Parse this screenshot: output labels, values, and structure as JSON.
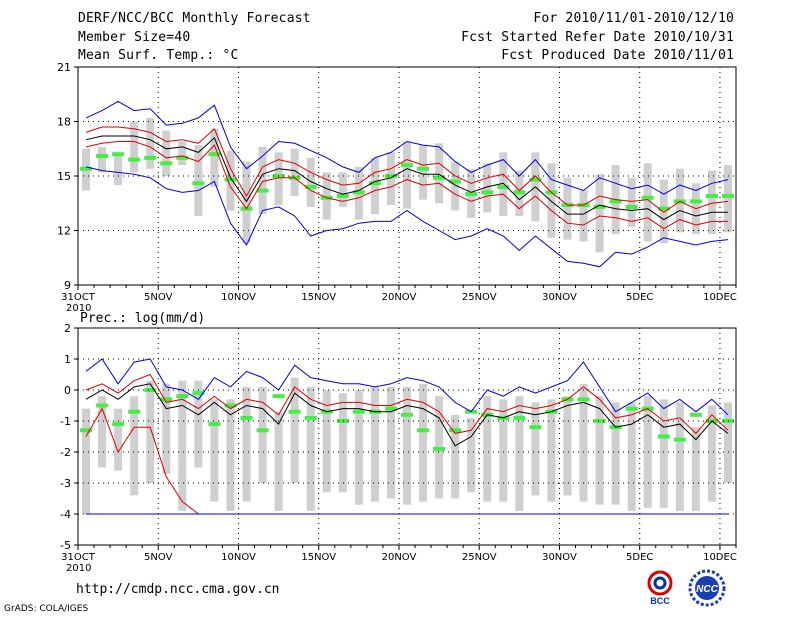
{
  "header": {
    "title": "DERF/NCC/BCC Monthly Forecast",
    "member": "Member Size=40",
    "variable": "Mean Surf. Temp.: °C",
    "for_period": "For 2010/11/01-2010/12/10",
    "fcst_started": "Fcst Started Refer Date 2010/10/31",
    "fcst_produced": "Fcst Produced Date 2010/11/01"
  },
  "footer": {
    "url": "http://cmdp.ncc.cma.gov.cn",
    "grads": "GrADS: COLA/IGES",
    "logo_bcc": "BCC",
    "logo_ncc": "NCC"
  },
  "colors": {
    "envelope": "#0000dd",
    "spread": "#dd0000",
    "mean": "#000000",
    "box": "#cfcfcf",
    "median": "#44ee44"
  },
  "chart_data": [
    {
      "type": "line",
      "title": "Mean Surf. Temp.: °C",
      "x_ticks": [
        {
          "i": 0,
          "label": "31OCT",
          "sub": "2010"
        },
        {
          "i": 5,
          "label": "5NOV"
        },
        {
          "i": 10,
          "label": "10NOV"
        },
        {
          "i": 15,
          "label": "15NOV"
        },
        {
          "i": 20,
          "label": "20NOV"
        },
        {
          "i": 25,
          "label": "25NOV"
        },
        {
          "i": 30,
          "label": "30NOV"
        },
        {
          "i": 35,
          "label": "5DEC"
        },
        {
          "i": 40,
          "label": "10DEC"
        }
      ],
      "ylim": [
        9,
        21
      ],
      "yticks": [
        9,
        12,
        15,
        18,
        21
      ],
      "n_days": 41,
      "first_day": 1,
      "series": [
        {
          "name": "max",
          "values": [
            18.2,
            18.6,
            19.1,
            18.6,
            18.7,
            17.8,
            17.9,
            18.2,
            18.9,
            16.6,
            15.4,
            16.1,
            16.9,
            16.8,
            16.4,
            16.0,
            15.5,
            15.2,
            16.0,
            16.3,
            16.9,
            16.7,
            16.6,
            15.8,
            15.2,
            15.6,
            15.9,
            15.0,
            15.9,
            14.8,
            14.5,
            14.2,
            14.9,
            14.6,
            14.3,
            14.5,
            14.0,
            14.5,
            14.2,
            14.6,
            14.8
          ]
        },
        {
          "name": "upper",
          "values": [
            17.4,
            17.7,
            17.7,
            17.6,
            17.4,
            16.9,
            17.0,
            16.8,
            17.6,
            15.4,
            13.9,
            15.5,
            15.9,
            15.7,
            15.2,
            14.8,
            14.5,
            14.6,
            15.2,
            15.4,
            15.9,
            15.6,
            15.7,
            15.0,
            14.6,
            14.9,
            15.1,
            14.2,
            15.0,
            14.1,
            13.4,
            13.4,
            13.9,
            13.7,
            13.6,
            13.7,
            13.0,
            13.6,
            13.2,
            13.5,
            13.6
          ]
        },
        {
          "name": "mean",
          "values": [
            17.0,
            17.2,
            17.2,
            17.2,
            17.0,
            16.5,
            16.6,
            16.3,
            17.1,
            14.9,
            13.6,
            15.1,
            15.4,
            15.3,
            14.7,
            14.3,
            14.0,
            14.2,
            14.7,
            14.9,
            15.4,
            15.1,
            15.1,
            14.5,
            14.1,
            14.4,
            14.6,
            13.7,
            14.4,
            13.6,
            12.9,
            12.9,
            13.4,
            13.2,
            13.1,
            13.2,
            12.6,
            13.1,
            12.8,
            13.0,
            13.0
          ]
        },
        {
          "name": "lower",
          "values": [
            16.6,
            16.8,
            16.9,
            16.9,
            16.6,
            16.0,
            16.1,
            15.8,
            16.7,
            14.4,
            13.2,
            14.7,
            14.9,
            14.9,
            14.2,
            13.8,
            13.6,
            13.8,
            14.2,
            14.4,
            14.8,
            14.5,
            14.6,
            14.0,
            13.6,
            13.9,
            14.0,
            13.2,
            13.9,
            13.1,
            12.4,
            12.3,
            12.8,
            12.7,
            12.5,
            12.7,
            12.1,
            12.6,
            12.3,
            12.5,
            12.5
          ]
        },
        {
          "name": "min",
          "values": [
            15.5,
            15.3,
            15.2,
            15.1,
            14.9,
            14.3,
            14.1,
            14.2,
            14.7,
            12.4,
            11.2,
            13.1,
            13.3,
            12.8,
            11.7,
            12.0,
            12.1,
            12.4,
            12.5,
            12.5,
            13.1,
            12.5,
            12.0,
            11.5,
            11.7,
            12.1,
            11.7,
            10.9,
            11.7,
            11.0,
            10.3,
            10.2,
            10.0,
            10.8,
            10.7,
            11.1,
            11.6,
            11.4,
            11.2,
            11.4,
            11.5
          ]
        }
      ],
      "boxes": {
        "top": [
          16.5,
          16.6,
          16.2,
          18.0,
          18.2,
          17.5,
          16.9,
          16.7,
          17.6,
          16.4,
          15.8,
          16.6,
          16.3,
          16.5,
          16.0,
          15.2,
          15.2,
          15.5,
          16.0,
          16.3,
          16.9,
          16.7,
          16.8,
          15.8,
          15.4,
          15.7,
          16.3,
          15.3,
          16.3,
          15.7,
          14.9,
          14.2,
          15.1,
          15.6,
          14.9,
          15.7,
          14.8,
          15.4,
          14.6,
          15.3,
          15.6
        ],
        "bottom": [
          14.2,
          15.2,
          14.5,
          15.2,
          15.4,
          15.0,
          15.6,
          12.8,
          14.4,
          13.1,
          11.3,
          12.9,
          13.4,
          13.9,
          13.3,
          12.6,
          13.3,
          12.6,
          12.9,
          13.4,
          13.2,
          13.7,
          13.5,
          13.1,
          12.7,
          13.0,
          12.8,
          12.8,
          12.5,
          11.6,
          11.5,
          11.4,
          10.8,
          11.8,
          12.2,
          11.4,
          11.3,
          11.9,
          11.8,
          11.8,
          11.9
        ],
        "mid": [
          15.4,
          16.1,
          16.2,
          15.9,
          16.0,
          15.7,
          16.0,
          14.6,
          16.2,
          14.8,
          13.2,
          14.2,
          15.0,
          14.9,
          14.4,
          13.8,
          13.9,
          14.1,
          14.6,
          15.0,
          15.6,
          15.4,
          14.9,
          14.7,
          14.0,
          14.1,
          14.4,
          14.1,
          14.8,
          14.1,
          13.4,
          13.4,
          13.3,
          13.6,
          13.3,
          13.8,
          13.2,
          13.6,
          13.6,
          13.9,
          13.9
        ]
      }
    },
    {
      "type": "line",
      "title": "Prec.: log(mm/d)",
      "x_ticks": [
        {
          "i": 0,
          "label": "31OCT",
          "sub": "2010"
        },
        {
          "i": 5,
          "label": "5NOV"
        },
        {
          "i": 10,
          "label": "10NOV"
        },
        {
          "i": 15,
          "label": "15NOV"
        },
        {
          "i": 20,
          "label": "20NOV"
        },
        {
          "i": 25,
          "label": "25NOV"
        },
        {
          "i": 30,
          "label": "30NOV"
        },
        {
          "i": 35,
          "label": "5DEC"
        },
        {
          "i": 40,
          "label": "10DEC"
        }
      ],
      "ylim": [
        -5,
        2
      ],
      "yticks": [
        -5,
        -4,
        -3,
        -2,
        -1,
        0,
        1,
        2
      ],
      "n_days": 41,
      "first_day": 1,
      "series": [
        {
          "name": "max",
          "values": [
            0.6,
            1.0,
            0.2,
            0.9,
            1.0,
            0.1,
            0.0,
            -0.3,
            0.4,
            0.1,
            0.6,
            0.4,
            0.0,
            0.8,
            0.4,
            0.3,
            0.2,
            0.2,
            0.1,
            0.2,
            0.4,
            0.3,
            0.1,
            -0.4,
            -0.7,
            0.0,
            -0.2,
            0.1,
            -0.1,
            0.1,
            0.3,
            0.9,
            0.1,
            -0.7,
            -0.4,
            -0.1,
            -0.6,
            -0.3,
            -0.7,
            -0.3,
            -0.8
          ]
        },
        {
          "name": "upper",
          "values": [
            0.0,
            0.2,
            -0.1,
            0.3,
            0.5,
            -0.4,
            -0.3,
            -0.6,
            -0.2,
            -0.6,
            -0.3,
            -0.4,
            -0.8,
            0.1,
            -0.3,
            -0.5,
            -0.4,
            -0.4,
            -0.5,
            -0.5,
            -0.3,
            -0.4,
            -0.7,
            -1.4,
            -1.3,
            -0.6,
            -0.7,
            -0.5,
            -0.6,
            -0.5,
            -0.3,
            0.1,
            -0.3,
            -0.9,
            -0.8,
            -0.6,
            -1.0,
            -0.9,
            -1.4,
            -0.8,
            -1.3
          ]
        },
        {
          "name": "mean",
          "values": [
            -0.3,
            0.0,
            -0.3,
            0.1,
            0.2,
            -0.6,
            -0.5,
            -0.8,
            -0.4,
            -0.8,
            -0.5,
            -0.6,
            -1.1,
            -0.1,
            -0.5,
            -0.7,
            -0.6,
            -0.6,
            -0.7,
            -0.7,
            -0.5,
            -0.6,
            -0.9,
            -1.8,
            -1.5,
            -0.8,
            -0.9,
            -0.7,
            -0.8,
            -0.7,
            -0.5,
            -0.4,
            -0.6,
            -1.2,
            -1.1,
            -0.8,
            -1.2,
            -1.1,
            -1.6,
            -1.0,
            -1.4
          ]
        },
        {
          "name": "lower",
          "values": [
            -1.5,
            -0.6,
            -2.0,
            -1.2,
            -1.2,
            -2.8,
            -3.6,
            -4.0,
            -4.0,
            -4.0,
            -4.0,
            -4.0,
            -4.0,
            -4.0,
            -4.0,
            -4.0,
            -4.0,
            -4.0,
            -4.0,
            -4.0,
            -4.0,
            -4.0,
            -4.0,
            -4.0,
            -4.0,
            -4.0,
            -4.0,
            -4.0,
            -4.0,
            -4.0,
            -4.0,
            -4.0,
            -4.0,
            -4.0,
            -4.0,
            -4.0,
            -4.0,
            -4.0,
            -4.0,
            -4.0,
            -4.0
          ]
        },
        {
          "name": "min",
          "values": [
            -4.0,
            -4.0,
            -4.0,
            -4.0,
            -4.0,
            -4.0,
            -4.0,
            -4.0,
            -4.0,
            -4.0,
            -4.0,
            -4.0,
            -4.0,
            -4.0,
            -4.0,
            -4.0,
            -4.0,
            -4.0,
            -4.0,
            -4.0,
            -4.0,
            -4.0,
            -4.0,
            -4.0,
            -4.0,
            -4.0,
            -4.0,
            -4.0,
            -4.0,
            -4.0,
            -4.0,
            -4.0,
            -4.0,
            -4.0,
            -4.0,
            -4.0,
            -4.0,
            -4.0,
            -4.0,
            -4.0,
            -4.0
          ]
        }
      ],
      "boxes": {
        "top": [
          -0.6,
          -0.2,
          -0.6,
          -0.2,
          0.3,
          0.2,
          0.3,
          0.3,
          -0.3,
          -0.3,
          0.1,
          0.1,
          -0.7,
          0.4,
          0.1,
          0.0,
          -0.1,
          0.0,
          0.1,
          0.1,
          0.1,
          0.2,
          -0.2,
          -0.8,
          -0.9,
          -0.2,
          -0.3,
          -0.2,
          -0.4,
          -0.3,
          -0.2,
          0.2,
          -0.2,
          -0.4,
          -0.4,
          -0.2,
          -0.3,
          -0.4,
          -1.2,
          -0.5,
          -0.4
        ],
        "bottom": [
          -4.0,
          -2.5,
          -2.6,
          -3.4,
          -3.0,
          -2.7,
          -3.9,
          -2.5,
          -3.6,
          -3.9,
          -3.6,
          -3.0,
          -3.9,
          -3.0,
          -3.9,
          -3.3,
          -3.3,
          -3.7,
          -3.6,
          -3.5,
          -3.7,
          -3.6,
          -3.5,
          -3.5,
          -3.3,
          -3.6,
          -3.6,
          -3.9,
          -3.4,
          -3.6,
          -3.4,
          -3.6,
          -3.7,
          -3.7,
          -3.9,
          -3.8,
          -3.8,
          -3.9,
          -3.9,
          -3.6,
          -3.0
        ],
        "mid": [
          -1.3,
          -0.5,
          -1.1,
          -0.7,
          0.0,
          -0.3,
          -0.2,
          -0.1,
          -1.1,
          -0.5,
          -0.9,
          -1.3,
          -0.2,
          -0.7,
          -0.9,
          -0.7,
          -1.0,
          -0.7,
          -0.7,
          -0.6,
          -0.8,
          -1.3,
          -1.9,
          -1.3,
          -0.7,
          -0.8,
          -0.9,
          -0.9,
          -1.2,
          -0.7,
          -0.3,
          -0.3,
          -1.0,
          -1.2,
          -0.6,
          -0.6,
          -1.5,
          -1.6,
          -0.8,
          -1.0,
          -1.0
        ]
      }
    }
  ]
}
